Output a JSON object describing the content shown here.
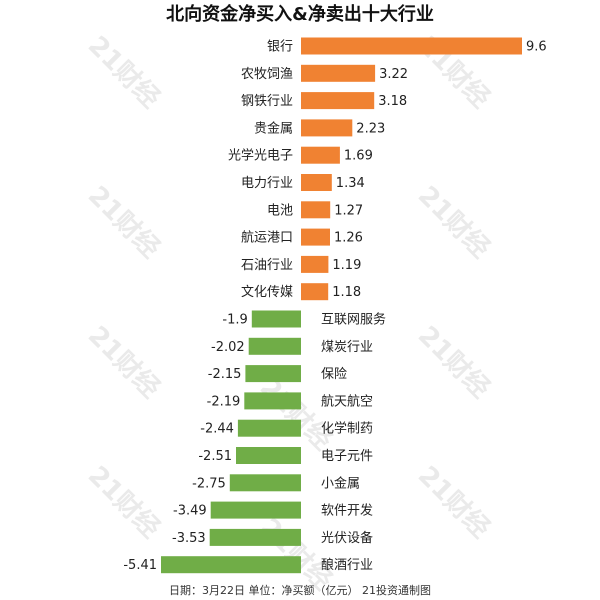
{
  "chart_data": {
    "type": "bar",
    "orientation": "horizontal",
    "title": "北向资金净买入&净卖出十大行业",
    "categories": [
      "银行",
      "农牧饲渔",
      "钢铁行业",
      "贵金属",
      "光学光电子",
      "电力行业",
      "电池",
      "航运港口",
      "石油行业",
      "文化传媒",
      "互联网服务",
      "煤炭行业",
      "保险",
      "航天航空",
      "化学制药",
      "电子元件",
      "小金属",
      "软件开发",
      "光伏设备",
      "酿酒行业"
    ],
    "values": [
      9.6,
      3.22,
      3.18,
      2.23,
      1.69,
      1.34,
      1.27,
      1.26,
      1.19,
      1.18,
      -1.9,
      -2.02,
      -2.15,
      -2.19,
      -2.44,
      -2.51,
      -2.75,
      -3.49,
      -3.53,
      -5.41
    ],
    "value_labels": [
      "9.6",
      "3.22",
      "3.18",
      "2.23",
      "1.69",
      "1.34",
      "1.27",
      "1.26",
      "1.19",
      "1.18",
      "-1.9",
      "-2.02",
      "-2.15",
      "-2.19",
      "-2.44",
      "-2.51",
      "-2.75",
      "-3.49",
      "-3.53",
      "-5.41"
    ],
    "xlim": [
      -5.41,
      9.6
    ],
    "grid": false,
    "colors": {
      "positive": "#f08232",
      "negative": "#70ad47"
    }
  },
  "footer": "日期：3月22日 单位：净买额（亿元） 21投资通制图",
  "watermark": "21财经"
}
